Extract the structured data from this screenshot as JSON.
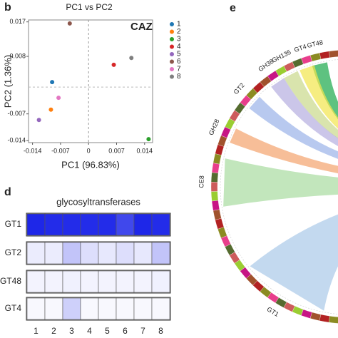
{
  "chart_data": [
    {
      "type": "scatter",
      "panel": "b",
      "title": "PC1 vs PC2",
      "x_label": "PC1 (96.83%)",
      "y_label": "PC2 (1.36%)",
      "annotation": "CAZ",
      "xlim": [
        -0.015,
        0.016
      ],
      "xticks": [
        -0.014,
        -0.007,
        0,
        0.007,
        0.014
      ],
      "ylim": [
        -0.0145,
        0.0175
      ],
      "yticks": [
        -0.014,
        -0.007,
        0.008,
        0.017
      ],
      "legend": "right",
      "series": [
        {
          "name": "1",
          "color": "#1f77b4",
          "x": [
            -0.0091
          ],
          "values": [
            0.0013
          ]
        },
        {
          "name": "2",
          "color": "#ff7f0e",
          "x": [
            -0.0094
          ],
          "values": [
            -0.0059
          ]
        },
        {
          "name": "3",
          "color": "#2ca02c",
          "x": [
            0.015
          ],
          "values": [
            -0.0136
          ]
        },
        {
          "name": "4",
          "color": "#d62728",
          "x": [
            0.0063
          ],
          "values": [
            0.0058
          ]
        },
        {
          "name": "5",
          "color": "#9467bd",
          "x": [
            -0.0124
          ],
          "values": [
            -0.0086
          ]
        },
        {
          "name": "6",
          "color": "#8c564b",
          "x": [
            -0.0047
          ],
          "values": [
            0.0166
          ]
        },
        {
          "name": "7",
          "color": "#e377c2",
          "x": [
            -0.0075
          ],
          "values": [
            -0.0028
          ]
        },
        {
          "name": "8",
          "color": "#7f7f7f",
          "x": [
            0.0107
          ],
          "values": [
            0.0076
          ]
        }
      ]
    },
    {
      "type": "heatmap",
      "panel": "d",
      "title": "glycosyltransferases",
      "rows": [
        "GT1",
        "GT2",
        "GT48",
        "GT4"
      ],
      "categories": [
        "1",
        "2",
        "3",
        "4",
        "5",
        "6",
        "7",
        "8"
      ],
      "color": "#0a14e6",
      "color_range": [
        0,
        1
      ],
      "values": [
        [
          0.92,
          0.9,
          0.9,
          0.9,
          0.9,
          0.78,
          0.92,
          0.9
        ],
        [
          0.08,
          0.08,
          0.25,
          0.14,
          0.1,
          0.14,
          0.1,
          0.25
        ],
        [
          0.05,
          0.05,
          0.06,
          0.05,
          0.05,
          0.05,
          0.05,
          0.06
        ],
        [
          0.03,
          0.03,
          0.2,
          0.03,
          0.03,
          0.03,
          0.03,
          0.03
        ]
      ]
    },
    {
      "type": "chord",
      "panel": "e",
      "labels": [
        "GT48",
        "GT4",
        "GH135",
        "GH38",
        "GT2",
        "GH28",
        "CE8",
        "GT1"
      ],
      "angles": [
        103,
        109,
        117,
        124,
        138,
        156,
        178,
        239
      ],
      "colors": [
        "#1aa84a",
        "#f2e64b",
        "#c9d98a",
        "#b5aee0",
        "#9ab2e8",
        "#f4a36c",
        "#a8dba0",
        "#a9c9e8"
      ]
    }
  ]
}
